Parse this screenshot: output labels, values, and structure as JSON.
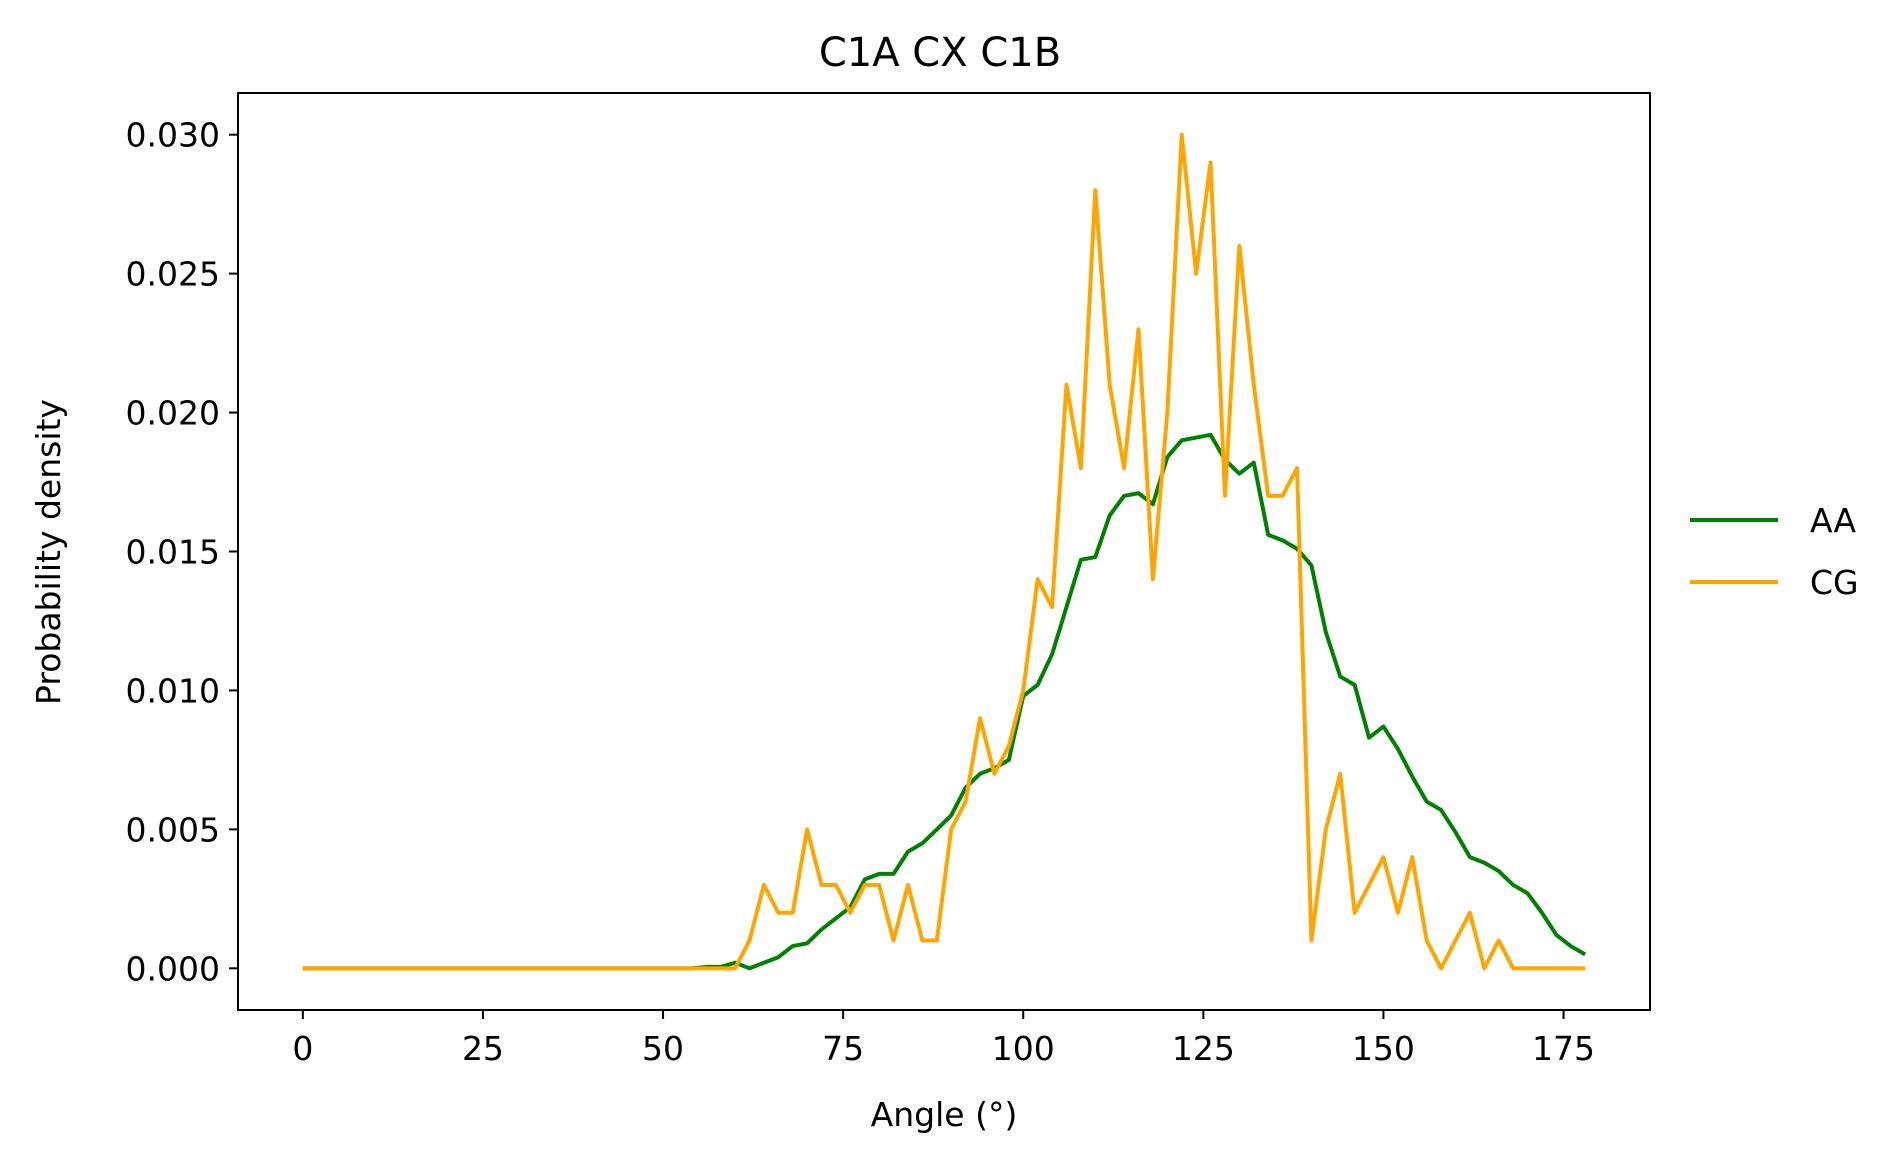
{
  "chart_data": {
    "type": "line",
    "title": "C1A CX C1B",
    "xlabel": "Angle (°)",
    "ylabel": "Probability density",
    "xlim": [
      -9,
      187
    ],
    "ylim": [
      -0.0015,
      0.0315
    ],
    "xticks": [
      0,
      25,
      50,
      75,
      100,
      125,
      150,
      175
    ],
    "xtick_labels": [
      "0",
      "25",
      "50",
      "75",
      "100",
      "125",
      "150",
      "175"
    ],
    "yticks": [
      0.0,
      0.005,
      0.01,
      0.015,
      0.02,
      0.025,
      0.03
    ],
    "ytick_labels": [
      "0.000",
      "0.005",
      "0.010",
      "0.015",
      "0.020",
      "0.025",
      "0.030"
    ],
    "grid": false,
    "legend_position": "right, outside plot",
    "x": [
      0,
      2,
      4,
      6,
      8,
      10,
      12,
      14,
      16,
      18,
      20,
      22,
      24,
      26,
      28,
      30,
      32,
      34,
      36,
      38,
      40,
      42,
      44,
      46,
      48,
      50,
      52,
      54,
      56,
      58,
      60,
      62,
      64,
      66,
      68,
      70,
      72,
      74,
      76,
      78,
      80,
      82,
      84,
      86,
      88,
      90,
      92,
      94,
      96,
      98,
      100,
      102,
      104,
      106,
      108,
      110,
      112,
      114,
      116,
      118,
      120,
      122,
      124,
      126,
      128,
      130,
      132,
      134,
      136,
      138,
      140,
      142,
      144,
      146,
      148,
      150,
      152,
      154,
      156,
      158,
      160,
      162,
      164,
      166,
      168,
      170,
      172,
      174,
      176,
      178
    ],
    "series": [
      {
        "name": "AA",
        "color": "#008000",
        "values": [
          0,
          0,
          0,
          0,
          0,
          0,
          0,
          0,
          0,
          0,
          0,
          0,
          0,
          0,
          0,
          0,
          0,
          0,
          0,
          0,
          0,
          0,
          0,
          0,
          0,
          0,
          0,
          0,
          5e-05,
          5e-05,
          0.0002,
          0.0,
          0.0002,
          0.0004,
          0.0008,
          0.0009,
          0.0014,
          0.0018,
          0.0022,
          0.0032,
          0.0034,
          0.0034,
          0.0042,
          0.0045,
          0.005,
          0.0055,
          0.0065,
          0.007,
          0.0072,
          0.0075,
          0.0098,
          0.0102,
          0.0113,
          0.013,
          0.0147,
          0.0148,
          0.0163,
          0.017,
          0.0171,
          0.0167,
          0.0184,
          0.019,
          0.0191,
          0.0192,
          0.0183,
          0.0178,
          0.0182,
          0.0156,
          0.0154,
          0.0151,
          0.0145,
          0.0121,
          0.0105,
          0.0102,
          0.0083,
          0.0087,
          0.0079,
          0.0069,
          0.006,
          0.0057,
          0.0049,
          0.004,
          0.0038,
          0.0035,
          0.003,
          0.0027,
          0.002,
          0.0012,
          0.0008,
          0.0005
        ]
      },
      {
        "name": "CG",
        "color": "#FFA500",
        "values": [
          0,
          0,
          0,
          0,
          0,
          0,
          0,
          0,
          0,
          0,
          0,
          0,
          0,
          0,
          0,
          0,
          0,
          0,
          0,
          0,
          0,
          0,
          0,
          0,
          0,
          0,
          0,
          0,
          0,
          0,
          0,
          0.001,
          0.003,
          0.002,
          0.002,
          0.005,
          0.003,
          0.003,
          0.002,
          0.003,
          0.003,
          0.001,
          0.003,
          0.001,
          0.001,
          0.005,
          0.006,
          0.009,
          0.007,
          0.008,
          0.01,
          0.014,
          0.013,
          0.021,
          0.018,
          0.028,
          0.021,
          0.018,
          0.023,
          0.014,
          0.02,
          0.03,
          0.025,
          0.029,
          0.017,
          0.026,
          0.021,
          0.017,
          0.017,
          0.018,
          0.001,
          0.005,
          0.007,
          0.002,
          0.003,
          0.004,
          0.002,
          0.004,
          0.001,
          0.0,
          0.001,
          0.002,
          0.0,
          0.001,
          0.0,
          0.0,
          0.0,
          0.0,
          0.0,
          0.0
        ]
      }
    ]
  }
}
